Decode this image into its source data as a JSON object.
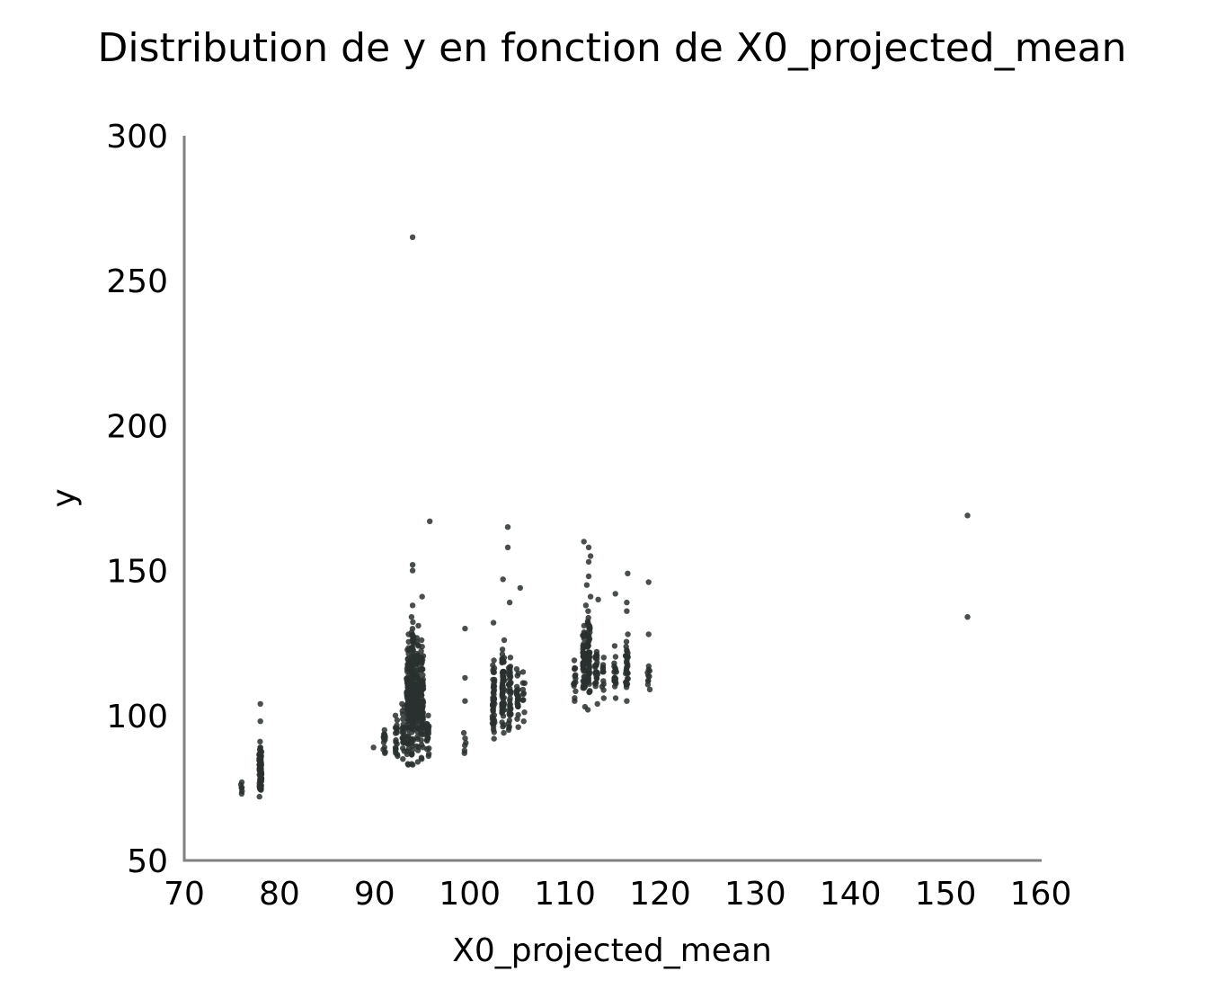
{
  "chart_data": {
    "type": "scatter",
    "title": "Distribution de y en fonction de X0_projected_mean",
    "xlabel": "X0_projected_mean",
    "ylabel": "y",
    "xlim": [
      70,
      160
    ],
    "ylim": [
      50,
      300
    ],
    "xticks": [
      70,
      80,
      90,
      100,
      110,
      120,
      130,
      140,
      150,
      160
    ],
    "yticks": [
      50,
      100,
      150,
      200,
      250,
      300
    ],
    "grid": false,
    "point_color": "#2a302f",
    "clusters": [
      {
        "x": 76.0,
        "y_min": 73,
        "y_max": 77,
        "n": 6
      },
      {
        "x": 78.0,
        "y_min": 72,
        "y_max": 91,
        "n": 90
      },
      {
        "x": 90.0,
        "y_min": 89,
        "y_max": 89,
        "n": 1
      },
      {
        "x": 91.0,
        "y_min": 87,
        "y_max": 95,
        "n": 15
      },
      {
        "x": 92.3,
        "y_min": 86,
        "y_max": 100,
        "n": 18
      },
      {
        "x": 93.0,
        "y_min": 85,
        "y_max": 104,
        "n": 25
      },
      {
        "x": 93.5,
        "y_min": 83,
        "y_max": 128,
        "n": 90
      },
      {
        "x": 94.0,
        "y_min": 83,
        "y_max": 134,
        "n": 140
      },
      {
        "x": 94.5,
        "y_min": 84,
        "y_max": 131,
        "n": 90
      },
      {
        "x": 95.0,
        "y_min": 85,
        "y_max": 126,
        "n": 70
      },
      {
        "x": 95.6,
        "y_min": 86,
        "y_max": 100,
        "n": 25
      },
      {
        "x": 99.5,
        "y_min": 87,
        "y_max": 94,
        "n": 6
      },
      {
        "x": 102.5,
        "y_min": 92,
        "y_max": 119,
        "n": 45
      },
      {
        "x": 103.5,
        "y_min": 94,
        "y_max": 126,
        "n": 60
      },
      {
        "x": 104.2,
        "y_min": 95,
        "y_max": 120,
        "n": 40
      },
      {
        "x": 105.0,
        "y_min": 96,
        "y_max": 116,
        "n": 25
      },
      {
        "x": 105.7,
        "y_min": 98,
        "y_max": 115,
        "n": 10
      },
      {
        "x": 111.0,
        "y_min": 105,
        "y_max": 119,
        "n": 14
      },
      {
        "x": 112.0,
        "y_min": 103,
        "y_max": 131,
        "n": 60
      },
      {
        "x": 112.5,
        "y_min": 102,
        "y_max": 136,
        "n": 70
      },
      {
        "x": 113.3,
        "y_min": 104,
        "y_max": 122,
        "n": 25
      },
      {
        "x": 114.0,
        "y_min": 106,
        "y_max": 120,
        "n": 12
      },
      {
        "x": 115.3,
        "y_min": 106,
        "y_max": 124,
        "n": 20
      },
      {
        "x": 116.5,
        "y_min": 105,
        "y_max": 128,
        "n": 35
      },
      {
        "x": 118.8,
        "y_min": 109,
        "y_max": 117,
        "n": 10
      }
    ],
    "points": [
      {
        "x": 94.0,
        "y": 265
      },
      {
        "x": 95.8,
        "y": 167
      },
      {
        "x": 94.0,
        "y": 152
      },
      {
        "x": 94.0,
        "y": 150
      },
      {
        "x": 95.0,
        "y": 141
      },
      {
        "x": 94.0,
        "y": 138
      },
      {
        "x": 78.0,
        "y": 104
      },
      {
        "x": 78.0,
        "y": 98
      },
      {
        "x": 99.5,
        "y": 130
      },
      {
        "x": 99.5,
        "y": 113
      },
      {
        "x": 99.5,
        "y": 105
      },
      {
        "x": 104.0,
        "y": 165
      },
      {
        "x": 104.0,
        "y": 158
      },
      {
        "x": 103.5,
        "y": 147
      },
      {
        "x": 105.3,
        "y": 144
      },
      {
        "x": 104.2,
        "y": 139
      },
      {
        "x": 102.5,
        "y": 132
      },
      {
        "x": 112.0,
        "y": 160
      },
      {
        "x": 112.5,
        "y": 158
      },
      {
        "x": 112.7,
        "y": 155
      },
      {
        "x": 112.5,
        "y": 153
      },
      {
        "x": 112.5,
        "y": 148
      },
      {
        "x": 112.3,
        "y": 145
      },
      {
        "x": 112.7,
        "y": 141
      },
      {
        "x": 113.5,
        "y": 140
      },
      {
        "x": 112.2,
        "y": 138
      },
      {
        "x": 116.6,
        "y": 149
      },
      {
        "x": 115.3,
        "y": 142
      },
      {
        "x": 116.5,
        "y": 139
      },
      {
        "x": 116.5,
        "y": 136
      },
      {
        "x": 118.8,
        "y": 146
      },
      {
        "x": 118.8,
        "y": 128
      },
      {
        "x": 152.3,
        "y": 169
      },
      {
        "x": 152.3,
        "y": 134
      }
    ]
  }
}
